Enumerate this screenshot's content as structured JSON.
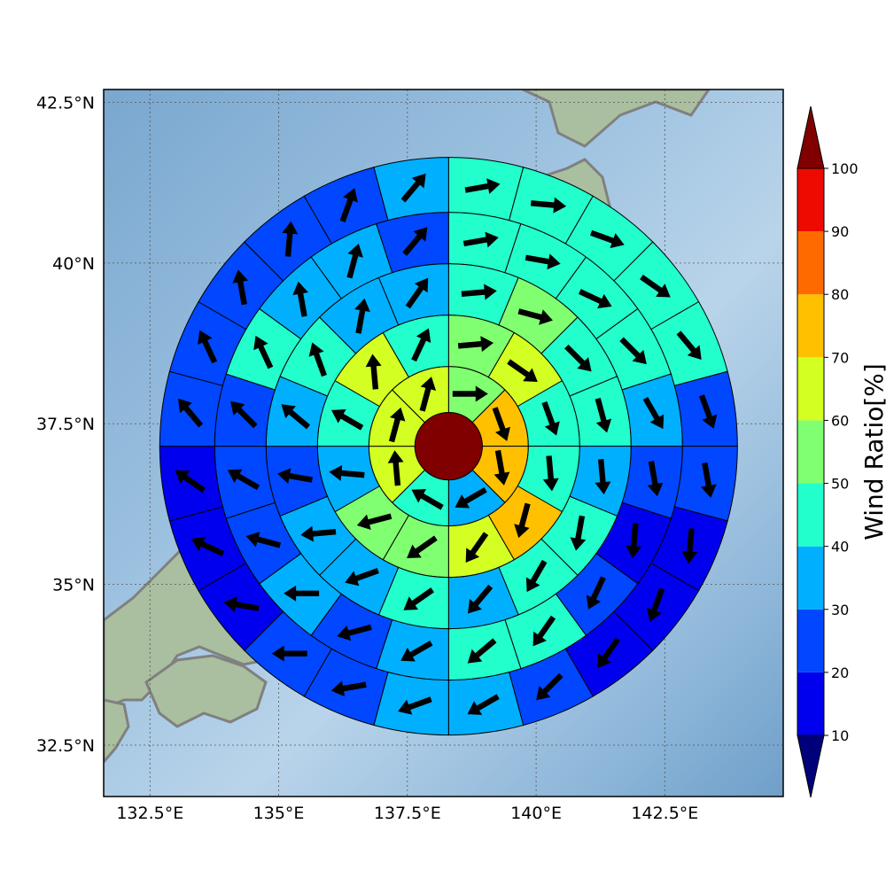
{
  "map": {
    "lat_ticks": [
      "42.5°N",
      "40°N",
      "37.5°N",
      "35°N",
      "32.5°N"
    ],
    "lon_ticks": [
      "132.5°E",
      "135°E",
      "137.5°E",
      "140°E",
      "142.5°E"
    ],
    "lat_values": [
      42.5,
      40,
      37.5,
      35,
      32.5
    ],
    "lon_values": [
      132.5,
      135,
      137.5,
      140,
      142.5
    ],
    "extent": {
      "lon_min": 131.6,
      "lon_max": 144.8,
      "lat_min": 31.7,
      "lat_max": 42.7
    },
    "center": {
      "lon": 138.3,
      "lat": 37.15
    },
    "colors": {
      "ocean": "#8fb6d8",
      "land": "#a8c09a",
      "coast": "#7f7f7f"
    }
  },
  "colorbar": {
    "title": "Wind Ratio[%]",
    "ticks": [
      "10",
      "20",
      "30",
      "40",
      "50",
      "60",
      "70",
      "80",
      "90",
      "100"
    ],
    "bins": [
      {
        "min": 10,
        "max": 20,
        "color": "#0000ee"
      },
      {
        "min": 20,
        "max": 30,
        "color": "#0047ff"
      },
      {
        "min": 30,
        "max": 40,
        "color": "#00b0ff"
      },
      {
        "min": 40,
        "max": 50,
        "color": "#22ffcc"
      },
      {
        "min": 50,
        "max": 60,
        "color": "#80ff70"
      },
      {
        "min": 60,
        "max": 70,
        "color": "#d4ff22"
      },
      {
        "min": 70,
        "max": 80,
        "color": "#ffc000"
      },
      {
        "min": 80,
        "max": 90,
        "color": "#ff6a00"
      },
      {
        "min": 90,
        "max": 100,
        "color": "#ee0a00"
      }
    ],
    "under_color": "#00007a",
    "over_color": "#800000"
  },
  "rings": {
    "center_value": 100,
    "rings": [
      {
        "ring": 1,
        "sectors": 8,
        "values": [
          55,
          75,
          75,
          35,
          45,
          65,
          65,
          65
        ],
        "arrows_deg": [
          90,
          160,
          170,
          240,
          300,
          355,
          15,
          15
        ]
      },
      {
        "ring": 2,
        "sectors": 12,
        "values": [
          55,
          65,
          45,
          45,
          75,
          65,
          55,
          55,
          35,
          45,
          65,
          45
        ],
        "arrows_deg": [
          85,
          125,
          160,
          175,
          195,
          215,
          235,
          255,
          275,
          300,
          355,
          25
        ]
      },
      {
        "ring": 3,
        "sectors": 16,
        "values": [
          45,
          55,
          45,
          45,
          35,
          45,
          45,
          35,
          45,
          35,
          35,
          25,
          35,
          45,
          35,
          35
        ],
        "arrows_deg": [
          85,
          105,
          135,
          165,
          175,
          190,
          210,
          220,
          235,
          250,
          265,
          280,
          310,
          340,
          10,
          35
        ]
      },
      {
        "ring": 4,
        "sectors": 20,
        "values": [
          45,
          45,
          45,
          45,
          35,
          25,
          15,
          25,
          45,
          45,
          35,
          25,
          35,
          25,
          25,
          25,
          45,
          35,
          35,
          25
        ],
        "arrows_deg": [
          80,
          100,
          115,
          135,
          150,
          170,
          185,
          205,
          215,
          230,
          240,
          255,
          270,
          285,
          300,
          315,
          335,
          350,
          15,
          40
        ]
      },
      {
        "ring": 5,
        "sectors": 24,
        "values": [
          45,
          45,
          45,
          45,
          45,
          25,
          25,
          15,
          15,
          15,
          25,
          35,
          35,
          25,
          25,
          15,
          15,
          15,
          25,
          25,
          25,
          25,
          25,
          35
        ],
        "arrows_deg": [
          80,
          95,
          110,
          125,
          140,
          160,
          170,
          185,
          200,
          215,
          225,
          240,
          250,
          260,
          270,
          280,
          295,
          305,
          320,
          335,
          350,
          5,
          20,
          40
        ]
      }
    ]
  }
}
